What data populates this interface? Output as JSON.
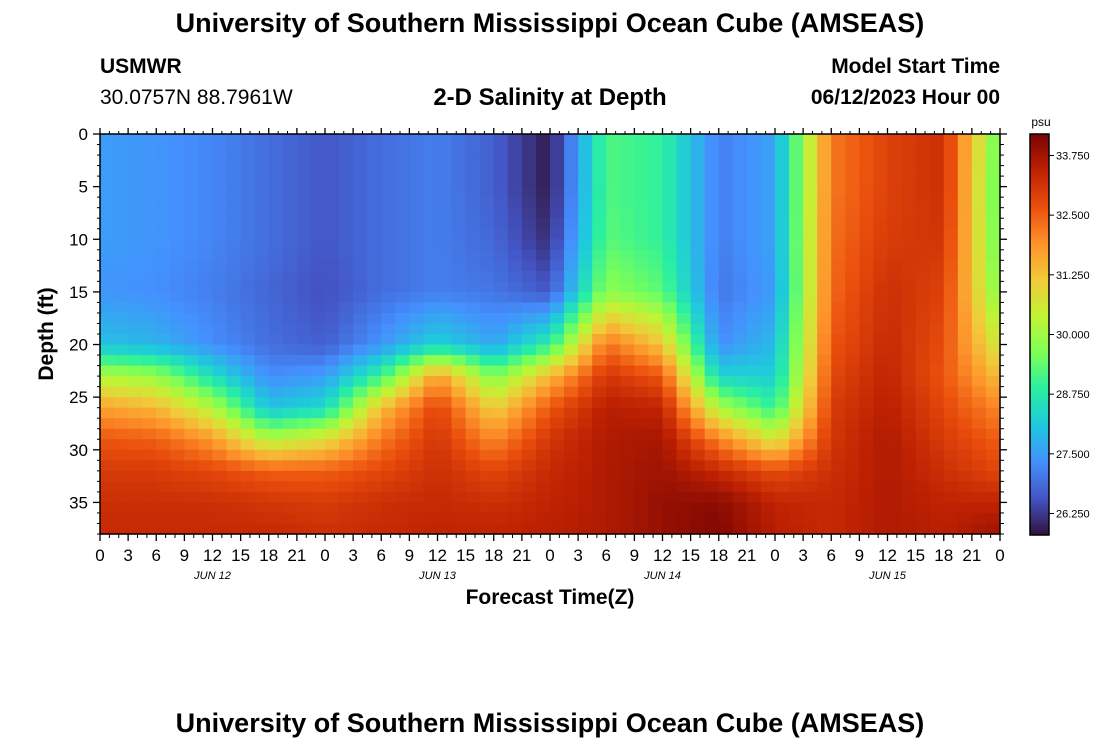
{
  "page": {
    "title": "University of Southern Mississippi Ocean Cube (AMSEAS)",
    "footer_title": "University of Southern Mississippi Ocean Cube (AMSEAS)"
  },
  "station": {
    "name": "USMWR",
    "coords": "30.0757N  88.7961W"
  },
  "model_start": {
    "label": "Model Start Time",
    "value": "06/12/2023 Hour 00"
  },
  "chart_data": {
    "type": "heatmap",
    "title": "2-D Salinity at Depth",
    "xlabel": "Forecast Time(Z)",
    "ylabel": "Depth (ft)",
    "x_unit": "hours from model start",
    "xlim": [
      0,
      96
    ],
    "ylim": [
      0,
      38
    ],
    "x_tick_values": [
      0,
      3,
      6,
      9,
      12,
      15,
      18,
      21,
      24,
      27,
      30,
      33,
      36,
      39,
      42,
      45,
      48,
      51,
      54,
      57,
      60,
      63,
      66,
      69,
      72,
      75,
      78,
      81,
      84,
      87,
      90,
      93,
      96
    ],
    "x_tick_labels": [
      "0",
      "3",
      "6",
      "9",
      "12",
      "15",
      "18",
      "21",
      "0",
      "3",
      "6",
      "9",
      "12",
      "15",
      "18",
      "21",
      "0",
      "3",
      "6",
      "9",
      "12",
      "15",
      "18",
      "21",
      "0",
      "3",
      "6",
      "9",
      "12",
      "15",
      "18",
      "21",
      "0"
    ],
    "date_labels": [
      {
        "text": "JUN 12",
        "hour": 12
      },
      {
        "text": "JUN 13",
        "hour": 36
      },
      {
        "text": "JUN 14",
        "hour": 60
      },
      {
        "text": "JUN 15",
        "hour": 84
      }
    ],
    "y_ticks": [
      0,
      5,
      10,
      15,
      20,
      25,
      30,
      35
    ],
    "colorbar": {
      "unit": "psu",
      "min": 25.8,
      "max": 34.2,
      "ticks": [
        26.25,
        27.5,
        28.75,
        30.0,
        31.25,
        32.5,
        33.75
      ],
      "tick_labels": [
        "26.250",
        "27.500",
        "28.750",
        "30.000",
        "31.250",
        "32.500",
        "33.750"
      ]
    },
    "salinity_grid": {
      "hours": [
        0,
        6,
        12,
        18,
        24,
        30,
        36,
        42,
        48,
        54,
        60,
        66,
        72,
        78,
        84,
        90,
        96
      ],
      "depths_ft": [
        0,
        5,
        10,
        15,
        20,
        23,
        26,
        29,
        32,
        35,
        38
      ],
      "values_psu": [
        [
          27.5,
          27.4,
          27.2,
          26.9,
          26.6,
          26.9,
          27.1,
          26.7,
          25.9,
          29.2,
          28.9,
          27.1,
          27.6,
          32.2,
          32.9,
          33.2,
          29.3
        ],
        [
          27.5,
          27.4,
          27.2,
          26.9,
          26.6,
          26.9,
          27.1,
          26.7,
          25.9,
          29.2,
          28.9,
          27.1,
          27.6,
          32.2,
          32.9,
          33.2,
          29.2
        ],
        [
          27.5,
          27.4,
          27.2,
          26.9,
          26.6,
          26.9,
          27.1,
          26.8,
          26.1,
          29.3,
          28.9,
          27.1,
          27.6,
          32.3,
          33.0,
          33.1,
          29.3
        ],
        [
          27.4,
          27.3,
          27.1,
          26.8,
          26.5,
          26.9,
          27.1,
          27.0,
          26.6,
          29.8,
          29.3,
          27.0,
          27.5,
          32.4,
          33.2,
          32.9,
          29.6
        ],
        [
          28.0,
          27.8,
          27.3,
          26.9,
          26.7,
          27.4,
          28.3,
          27.6,
          28.9,
          32.3,
          31.2,
          27.3,
          27.9,
          32.6,
          33.3,
          32.7,
          30.5
        ],
        [
          30.2,
          29.9,
          28.5,
          27.3,
          27.5,
          29.0,
          31.8,
          29.6,
          31.4,
          33.1,
          32.6,
          28.3,
          28.2,
          32.8,
          33.4,
          32.6,
          31.3
        ],
        [
          31.7,
          31.4,
          30.2,
          28.0,
          28.4,
          31.3,
          32.9,
          31.0,
          32.6,
          33.5,
          33.4,
          30.1,
          28.9,
          33.0,
          33.5,
          32.8,
          32.0
        ],
        [
          32.6,
          32.5,
          31.8,
          30.2,
          30.8,
          32.2,
          33.1,
          32.0,
          33.1,
          33.6,
          33.7,
          32.1,
          30.6,
          33.1,
          33.6,
          33.0,
          32.5
        ],
        [
          33.0,
          33.0,
          32.8,
          32.5,
          32.5,
          32.8,
          33.2,
          32.8,
          33.3,
          33.6,
          33.8,
          33.3,
          32.7,
          33.2,
          33.6,
          33.2,
          32.8
        ],
        [
          33.2,
          33.2,
          33.2,
          33.1,
          33.0,
          33.2,
          33.3,
          33.2,
          33.4,
          33.6,
          33.9,
          34.0,
          33.4,
          33.3,
          33.6,
          33.4,
          33.4
        ],
        [
          33.3,
          33.3,
          33.3,
          33.3,
          33.2,
          33.3,
          33.4,
          33.4,
          33.5,
          33.6,
          33.9,
          34.1,
          33.5,
          33.3,
          33.6,
          33.5,
          33.8
        ]
      ]
    },
    "colormap": [
      "#30123b",
      "#4454c4",
      "#4490fe",
      "#1fc8de",
      "#29efa2",
      "#7dff56",
      "#c1f334",
      "#f1ca3a",
      "#fe922a",
      "#ea4f0d",
      "#be2102",
      "#7a0403"
    ]
  }
}
